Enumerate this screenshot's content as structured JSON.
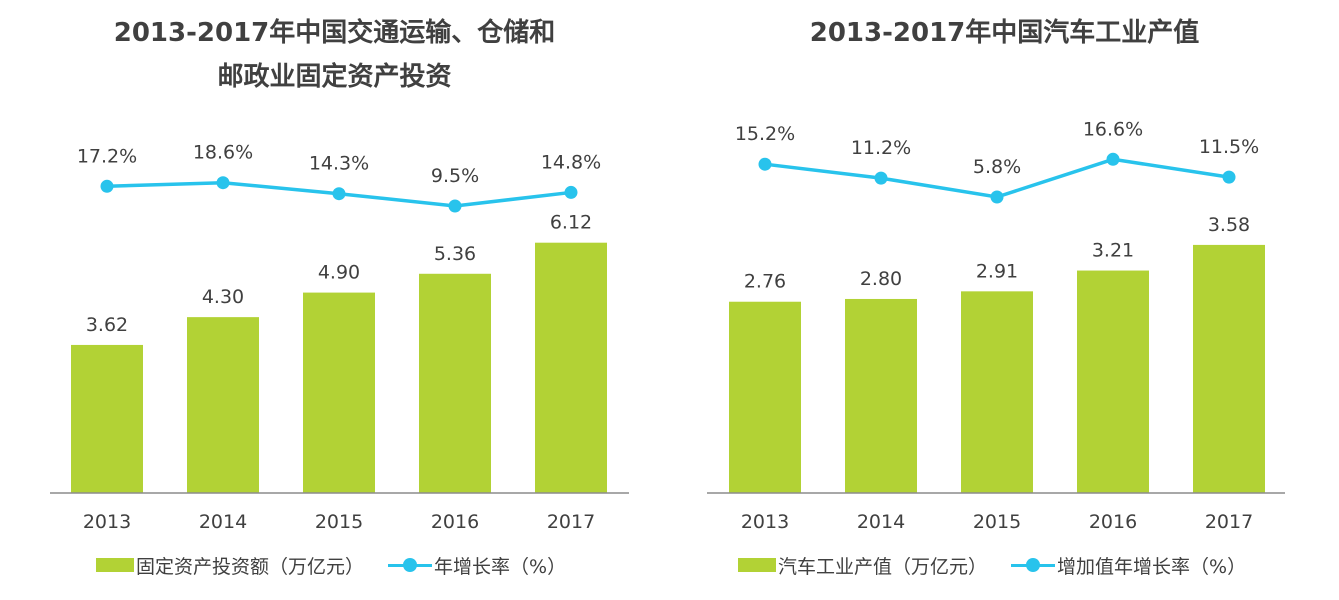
{
  "colors": {
    "bar": "#b2d235",
    "line": "#28c3ec",
    "axis": "#8c8c8c",
    "text": "#404040"
  },
  "chart_data": [
    {
      "type": "bar",
      "title_line1": "2013-2017年中国交通运输、仓储和",
      "title_line2": "邮政业固定资产投资",
      "categories": [
        "2013",
        "2014",
        "2015",
        "2016",
        "2017"
      ],
      "series": [
        {
          "name": "固定资产投资额（万亿元）",
          "type": "bar",
          "values": [
            3.62,
            4.3,
            4.9,
            5.36,
            6.12
          ],
          "labels": [
            "3.62",
            "4.30",
            "4.90",
            "5.36",
            "6.12"
          ]
        },
        {
          "name": "年增长率（%）",
          "type": "line",
          "values": [
            17.2,
            18.6,
            14.3,
            9.5,
            14.8
          ],
          "labels": [
            "17.2%",
            "18.6%",
            "14.3%",
            "9.5%",
            "14.8%"
          ]
        }
      ],
      "legend": [
        "固定资产投资额（万亿元）",
        "年增长率（%）"
      ],
      "legend_position": "bottom",
      "grid": false
    },
    {
      "type": "bar",
      "title": "2013-2017年中国汽车工业产值",
      "categories": [
        "2013",
        "2014",
        "2015",
        "2016",
        "2017"
      ],
      "series": [
        {
          "name": "汽车工业产值（万亿元）",
          "type": "bar",
          "values": [
            2.76,
            2.8,
            2.91,
            3.21,
            3.58
          ],
          "labels": [
            "2.76",
            "2.80",
            "2.91",
            "3.21",
            "3.58"
          ]
        },
        {
          "name": "增加值年增长率（%）",
          "type": "line",
          "values": [
            15.2,
            11.2,
            5.8,
            16.6,
            11.5
          ],
          "labels": [
            "15.2%",
            "11.2%",
            "5.8%",
            "16.6%",
            "11.5%"
          ]
        }
      ],
      "legend": [
        "汽车工业产值（万亿元）",
        "增加值年增长率（%）"
      ],
      "legend_position": "bottom",
      "grid": false
    }
  ]
}
